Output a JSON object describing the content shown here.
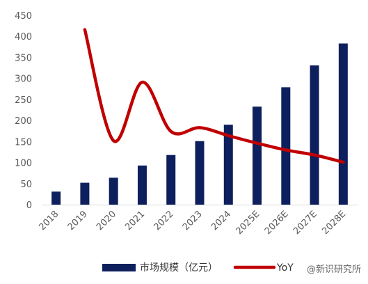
{
  "chart_data": {
    "type": "bar",
    "title": "",
    "xlabel": "",
    "ylabel": "",
    "categories": [
      "2018",
      "2019",
      "2020",
      "2021",
      "2022",
      "2023",
      "2024",
      "2025E",
      "2026E",
      "2027E",
      "2028E"
    ],
    "ylim": [
      0,
      450
    ],
    "yticks": [
      0,
      50,
      100,
      150,
      200,
      250,
      300,
      350,
      400,
      450
    ],
    "grid": false,
    "legend_position": "bottom",
    "series": [
      {
        "name": "市场规模（亿元）",
        "type": "bar",
        "color": "#0d1f5c",
        "values": [
          31,
          52,
          64,
          93,
          118,
          151,
          190,
          233,
          279,
          331,
          383
        ]
      },
      {
        "name": "YoY",
        "type": "line",
        "color": "#c00000",
        "values": [
          null,
          416,
          152,
          291,
          174,
          183,
          164,
          146,
          130,
          118,
          101
        ]
      }
    ]
  },
  "legend": {
    "bar_label": "市场规模（亿元）",
    "line_label": "YoY"
  },
  "watermark": {
    "text": "@新识研究所"
  }
}
